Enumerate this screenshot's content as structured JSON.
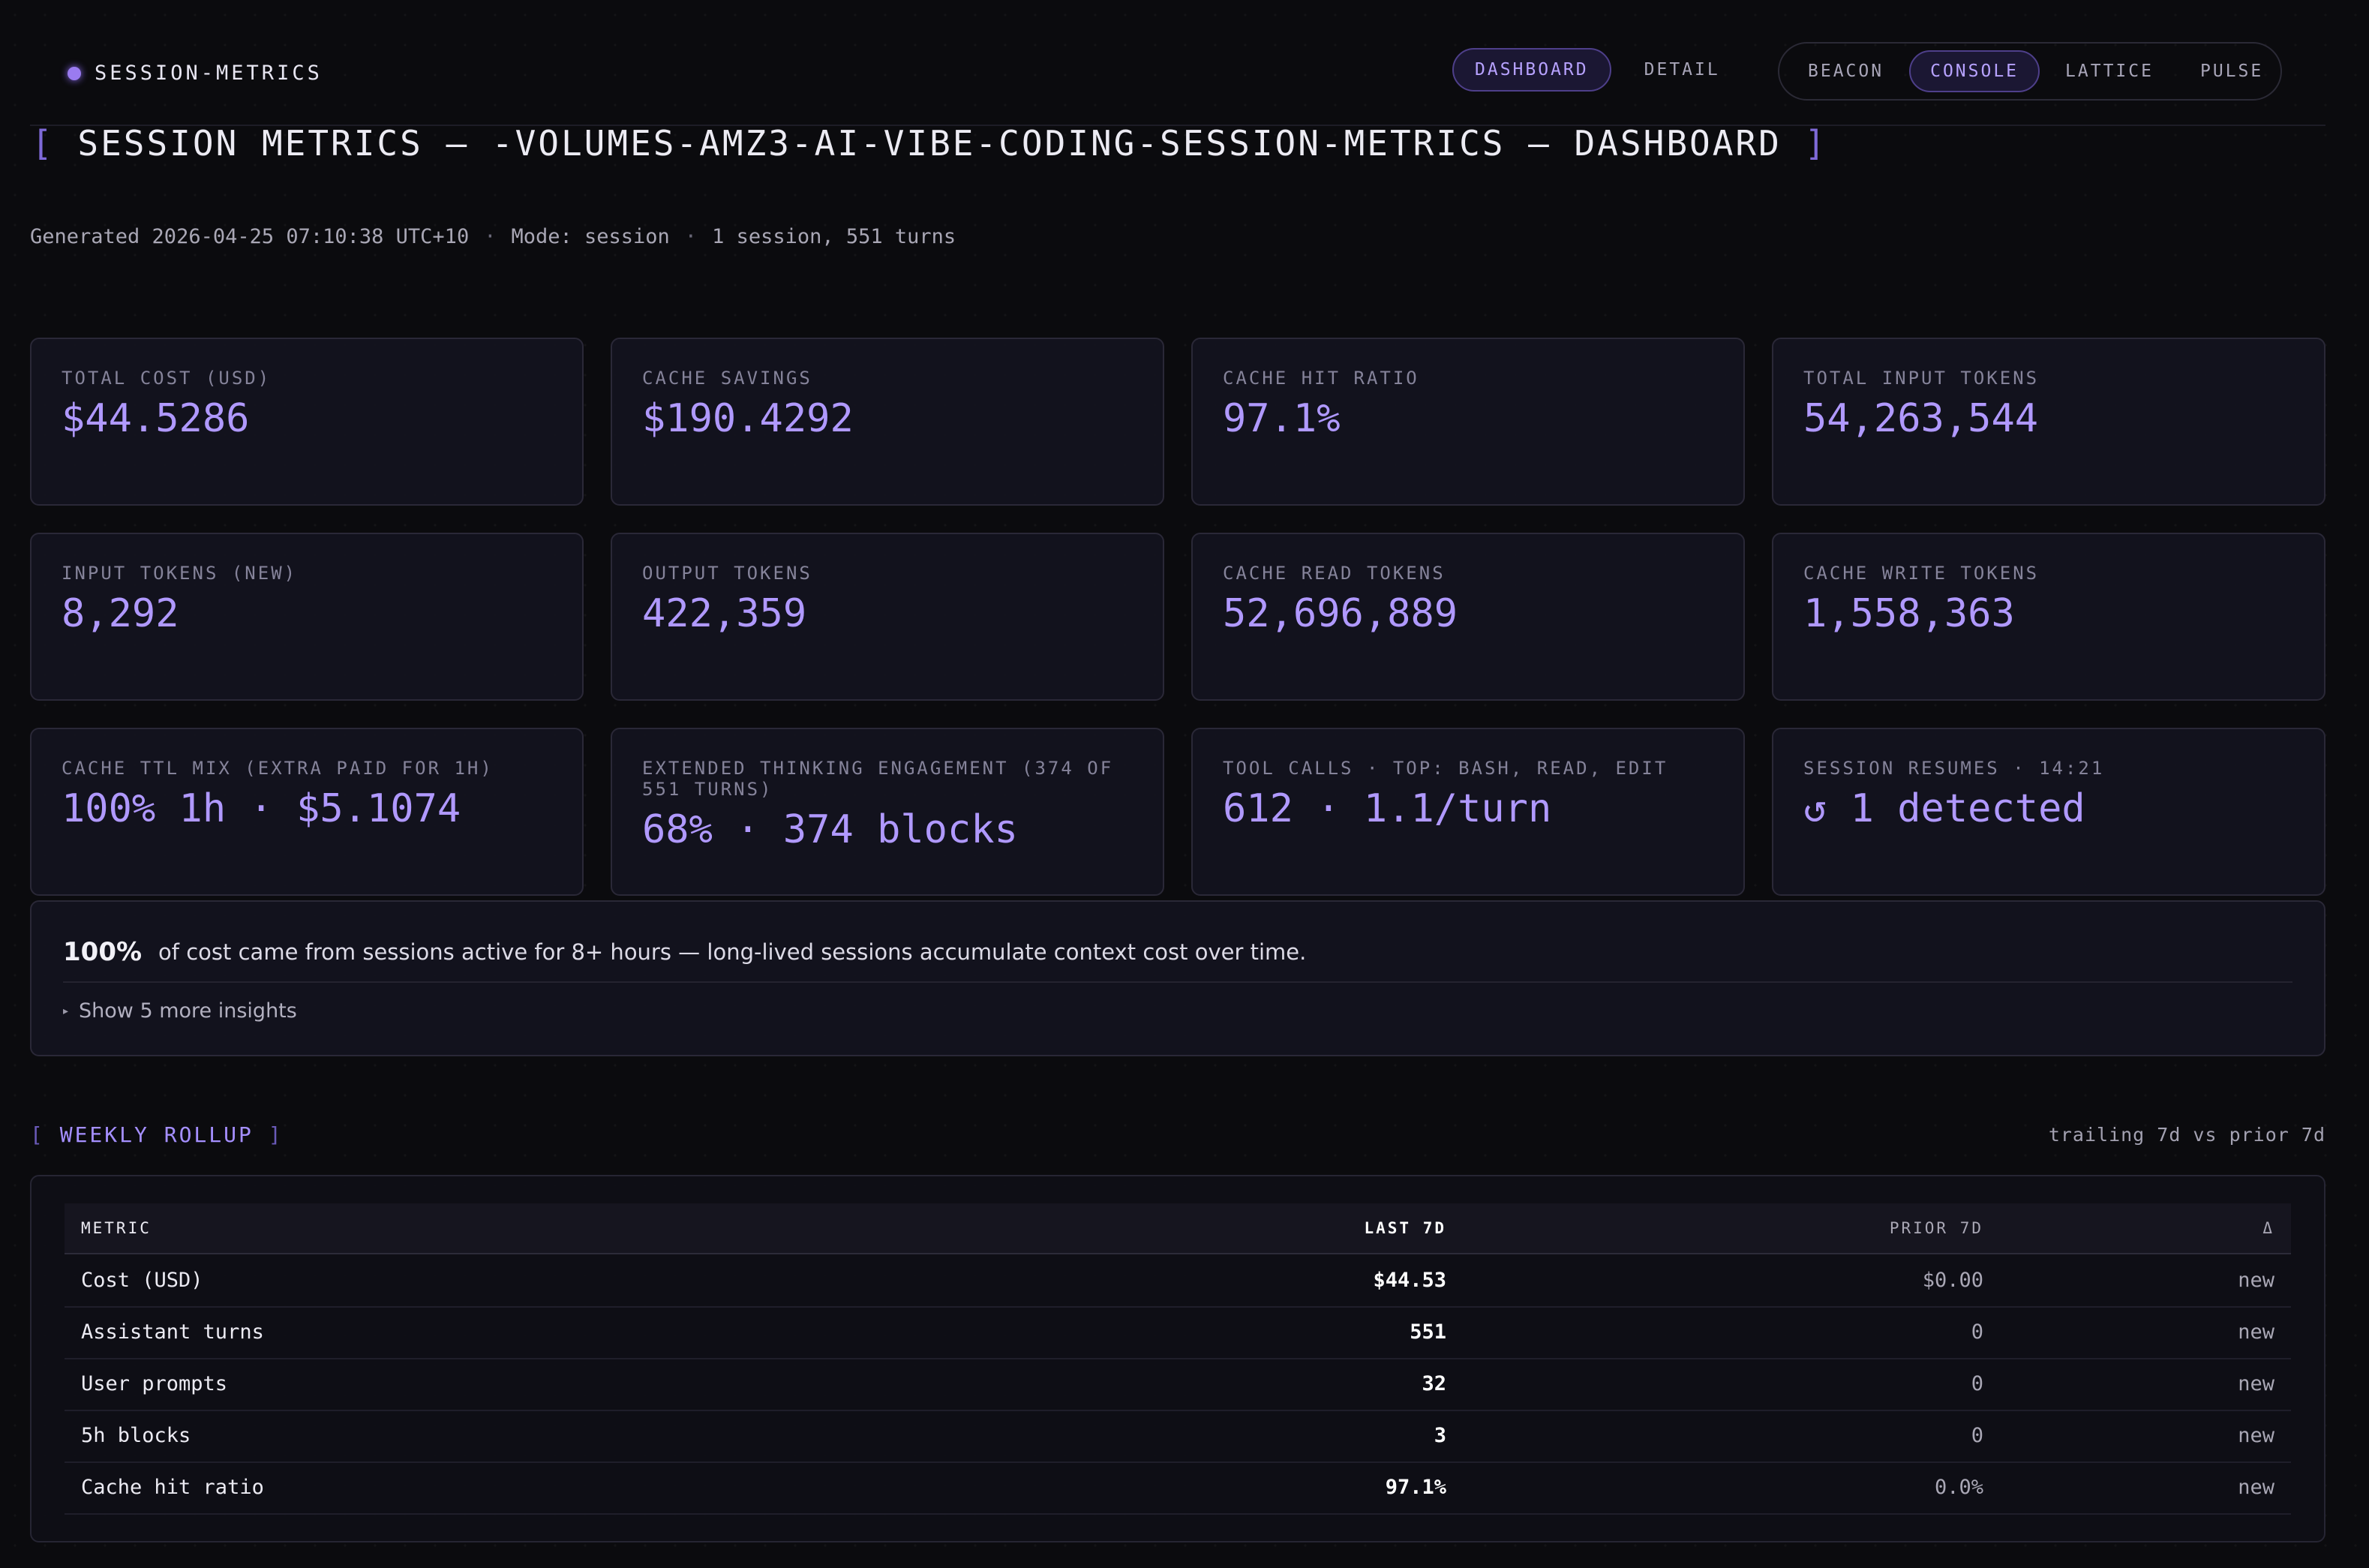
{
  "brand": {
    "name": "SESSION-METRICS"
  },
  "nav_views": [
    {
      "label": "DASHBOARD",
      "active": true
    },
    {
      "label": "DETAIL",
      "active": false
    }
  ],
  "nav_themes": [
    {
      "label": "BEACON",
      "active": false
    },
    {
      "label": "CONSOLE",
      "active": true
    },
    {
      "label": "LATTICE",
      "active": false
    },
    {
      "label": "PULSE",
      "active": false
    }
  ],
  "title": {
    "open": "[",
    "text": "SESSION METRICS — -VOLUMES-AMZ3-AI-VIBE-CODING-SESSION-METRICS — DASHBOARD",
    "close": "]"
  },
  "meta": {
    "generated": "Generated 2026-04-25 07:10:38 UTC+10",
    "mode": "Mode: session",
    "summary": "1 session, 551 turns"
  },
  "cards": [
    {
      "label": "TOTAL COST (USD)",
      "value": "$44.5286"
    },
    {
      "label": "CACHE SAVINGS",
      "value": "$190.4292"
    },
    {
      "label": "CACHE HIT RATIO",
      "value": "97.1%"
    },
    {
      "label": "TOTAL INPUT TOKENS",
      "value": "54,263,544"
    },
    {
      "label": "INPUT TOKENS (NEW)",
      "value": "8,292"
    },
    {
      "label": "OUTPUT TOKENS",
      "value": "422,359"
    },
    {
      "label": "CACHE READ TOKENS",
      "value": "52,696,889"
    },
    {
      "label": "CACHE WRITE TOKENS",
      "value": "1,558,363"
    },
    {
      "label": "CACHE TTL MIX (EXTRA PAID FOR 1H)",
      "value": "100% 1h · $5.1074"
    },
    {
      "label": "EXTENDED THINKING ENGAGEMENT (374 OF 551 TURNS)",
      "value": "68% · 374 blocks"
    },
    {
      "label": "TOOL CALLS · TOP: BASH, READ, EDIT",
      "value": "612 · 1.1/turn"
    },
    {
      "label": "SESSION RESUMES · 14:21",
      "value": "↺ 1 detected"
    }
  ],
  "insights": {
    "primary_pct": "100%",
    "primary_text": "of cost came from sessions active for 8+ hours — long-lived sessions accumulate context cost over time.",
    "more_label": "Show 5 more insights"
  },
  "weekly": {
    "title": "WEEKLY ROLLUP",
    "bracket_open": "[",
    "bracket_close": "]",
    "note": "trailing 7d vs prior 7d",
    "columns": {
      "metric": "METRIC",
      "last": "LAST 7D",
      "prior": "PRIOR 7D",
      "delta": "Δ"
    },
    "rows": [
      {
        "metric": "Cost (USD)",
        "last": "$44.53",
        "prior": "$0.00",
        "delta": "new"
      },
      {
        "metric": "Assistant turns",
        "last": "551",
        "prior": "0",
        "delta": "new"
      },
      {
        "metric": "User prompts",
        "last": "32",
        "prior": "0",
        "delta": "new"
      },
      {
        "metric": "5h blocks",
        "last": "3",
        "prior": "0",
        "delta": "new"
      },
      {
        "metric": "Cache hit ratio",
        "last": "97.1%",
        "prior": "0.0%",
        "delta": "new"
      }
    ]
  }
}
